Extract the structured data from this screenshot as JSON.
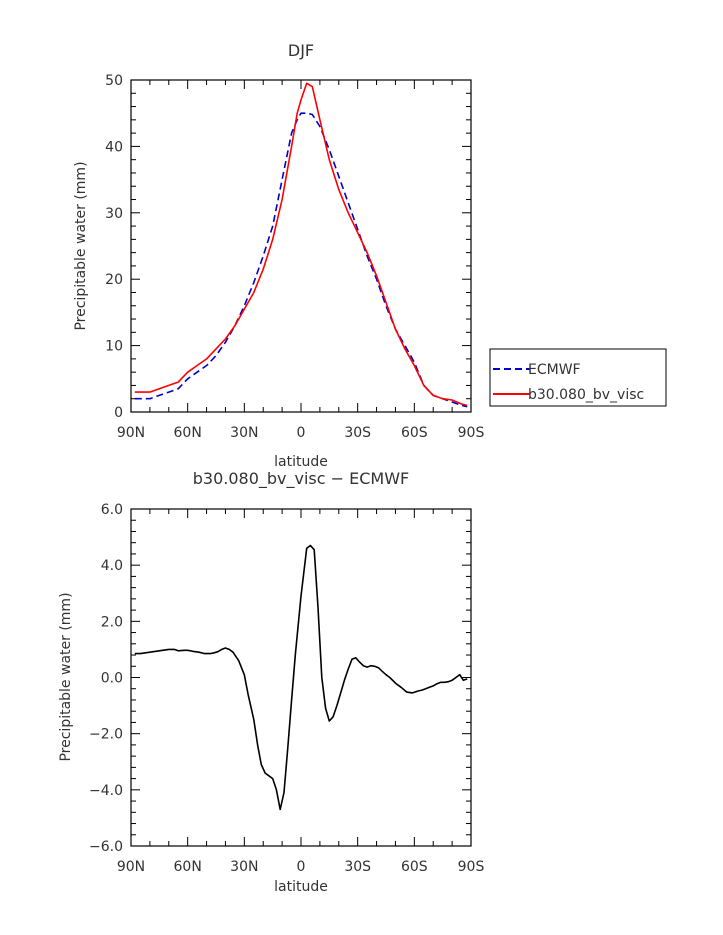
{
  "chart_data": [
    {
      "type": "line",
      "title": "DJF",
      "xlabel": "latitude",
      "ylabel": "Precipitable water (mm)",
      "xlim": [
        -90,
        90
      ],
      "ylim": [
        0,
        50
      ],
      "xticks": [
        -90,
        -60,
        -30,
        0,
        30,
        60,
        90
      ],
      "xtick_labels": [
        "90N",
        "60N",
        "30N",
        "0",
        "30S",
        "60S",
        "90S"
      ],
      "yticks": [
        0,
        10,
        20,
        30,
        40,
        50
      ],
      "ytick_labels": [
        "0",
        "10",
        "20",
        "30",
        "40",
        "50"
      ],
      "legend_position": "right",
      "grid": false,
      "series": [
        {
          "name": "ECMWF",
          "color": "#0000cc",
          "dash": "dashed",
          "x": [
            -88,
            -80,
            -75,
            -70,
            -65,
            -60,
            -55,
            -50,
            -45,
            -40,
            -35,
            -30,
            -25,
            -20,
            -15,
            -10,
            -5,
            -2,
            0,
            3,
            6,
            10,
            15,
            20,
            25,
            30,
            35,
            40,
            45,
            50,
            55,
            60,
            65,
            70,
            75,
            80,
            85,
            88
          ],
          "values": [
            2,
            2,
            2.5,
            3,
            3.5,
            5,
            6,
            7,
            8.5,
            10.5,
            13,
            16,
            19.5,
            23.5,
            28,
            35,
            42,
            44,
            45,
            45,
            44.8,
            43,
            39.5,
            35.5,
            31.5,
            27.5,
            23.5,
            20,
            16,
            12.5,
            10,
            7.5,
            4,
            2.5,
            2,
            1.5,
            1,
            0.8
          ]
        },
        {
          "name": "b30.080_bv_visc",
          "color": "#ff0000",
          "dash": "solid",
          "x": [
            -88,
            -80,
            -75,
            -70,
            -65,
            -60,
            -55,
            -50,
            -45,
            -40,
            -35,
            -30,
            -25,
            -20,
            -15,
            -10,
            -5,
            -2,
            0,
            3,
            6,
            10,
            15,
            20,
            25,
            30,
            35,
            40,
            45,
            50,
            55,
            60,
            65,
            70,
            75,
            80,
            85,
            88
          ],
          "values": [
            3,
            3,
            3.5,
            4,
            4.5,
            6,
            7,
            8,
            9.5,
            11,
            13,
            15.5,
            18,
            21.5,
            26,
            32,
            40,
            45,
            47,
            49.5,
            49,
            44,
            38,
            33.5,
            30,
            27,
            24,
            20.5,
            16.5,
            12.5,
            9.5,
            7,
            4,
            2.5,
            2,
            1.8,
            1.2,
            1
          ]
        }
      ]
    },
    {
      "type": "line",
      "title": "b30.080_bv_visc − ECMWF",
      "xlabel": "latitude",
      "ylabel": "Precipitable water (mm)",
      "xlim": [
        -90,
        90
      ],
      "ylim": [
        -6,
        6
      ],
      "xticks": [
        -90,
        -60,
        -30,
        0,
        30,
        60,
        90
      ],
      "xtick_labels": [
        "90N",
        "60N",
        "30N",
        "0",
        "30S",
        "60S",
        "90S"
      ],
      "yticks": [
        -6,
        -4,
        -2,
        0,
        2,
        4,
        6
      ],
      "ytick_labels": [
        "−6.0",
        "−4.0",
        "−2.0",
        "0.0",
        "2.0",
        "4.0",
        "6.0"
      ],
      "grid": false,
      "series": [
        {
          "color": "#000000",
          "dash": "solid",
          "x": [
            -88,
            -85,
            -80,
            -75,
            -70,
            -67,
            -65,
            -62,
            -60,
            -57,
            -54,
            -51,
            -48,
            -46,
            -44,
            -42,
            -40,
            -38,
            -36,
            -33,
            -30,
            -28,
            -25,
            -23,
            -21,
            -19,
            -17,
            -15,
            -13,
            -11,
            -9,
            -7,
            -5,
            -3,
            0,
            3,
            5,
            7,
            9,
            11,
            13,
            15,
            17,
            19,
            21,
            23,
            25,
            27,
            29,
            31,
            33,
            35,
            37,
            39,
            41,
            43,
            45,
            47,
            50,
            53,
            56,
            59,
            62,
            64,
            66,
            68,
            70,
            72,
            74,
            76,
            78,
            80,
            82,
            84,
            86,
            88
          ],
          "values": [
            0.85,
            0.85,
            0.9,
            0.95,
            1.0,
            1.0,
            0.95,
            0.97,
            0.97,
            0.93,
            0.9,
            0.85,
            0.85,
            0.88,
            0.92,
            1.0,
            1.05,
            1.0,
            0.9,
            0.6,
            0.1,
            -0.6,
            -1.5,
            -2.4,
            -3.1,
            -3.4,
            -3.5,
            -3.6,
            -4.0,
            -4.7,
            -4.1,
            -2.5,
            -0.8,
            0.8,
            2.9,
            4.6,
            4.7,
            4.55,
            2.5,
            0.0,
            -1.1,
            -1.55,
            -1.4,
            -1.0,
            -0.55,
            -0.1,
            0.3,
            0.65,
            0.7,
            0.55,
            0.42,
            0.37,
            0.42,
            0.4,
            0.35,
            0.22,
            0.1,
            0.0,
            -0.2,
            -0.35,
            -0.52,
            -0.55,
            -0.48,
            -0.45,
            -0.4,
            -0.35,
            -0.3,
            -0.22,
            -0.17,
            -0.17,
            -0.15,
            -0.1,
            0.0,
            0.1,
            -0.1,
            -0.05
          ]
        }
      ]
    }
  ]
}
